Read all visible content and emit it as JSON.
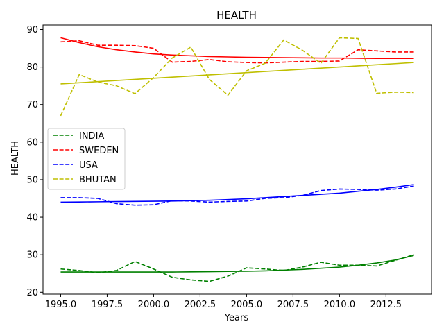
{
  "chart_data": {
    "type": "line",
    "title": "HEALTH",
    "xlabel": "Years",
    "ylabel": "HEALTH",
    "xlim": [
      1994.05,
      2014.95
    ],
    "ylim": [
      19.5,
      91.2
    ],
    "x_ticks": [
      1995.0,
      1997.5,
      2000.0,
      2002.5,
      2005.0,
      2007.5,
      2010.0,
      2012.5
    ],
    "x_tick_labels": [
      "1995.0",
      "1997.5",
      "2000.0",
      "2002.5",
      "2005.0",
      "2007.5",
      "2010.0",
      "2012.5"
    ],
    "y_ticks": [
      20,
      30,
      40,
      50,
      60,
      70,
      80,
      90
    ],
    "y_tick_labels": [
      "20",
      "30",
      "40",
      "50",
      "60",
      "70",
      "80",
      "90"
    ],
    "grid": false,
    "legend_position": "center-left",
    "x": [
      1995,
      1996,
      1997,
      1998,
      1999,
      2000,
      2001,
      2002,
      2003,
      2004,
      2005,
      2006,
      2007,
      2008,
      2009,
      2010,
      2011,
      2012,
      2013,
      2014
    ],
    "series": [
      {
        "name": "INDIA",
        "color": "#008000",
        "values": [
          26.2,
          25.8,
          25.2,
          25.8,
          28.2,
          26.2,
          24.0,
          23.3,
          22.9,
          24.3,
          26.5,
          26.2,
          25.8,
          26.7,
          28.0,
          27.2,
          27.2,
          27.0,
          28.5,
          30.0
        ],
        "trend": [
          25.4,
          25.4,
          25.4,
          25.4,
          25.4,
          25.4,
          25.4,
          25.45,
          25.5,
          25.55,
          25.6,
          25.7,
          25.9,
          26.1,
          26.4,
          26.7,
          27.2,
          27.8,
          28.6,
          29.8
        ]
      },
      {
        "name": "SWEDEN",
        "color": "#ff0000",
        "values": [
          86.7,
          87.0,
          85.8,
          85.8,
          85.7,
          85.0,
          81.3,
          81.5,
          82.0,
          81.4,
          81.2,
          81.1,
          81.3,
          81.5,
          81.5,
          81.6,
          84.6,
          84.3,
          84.0,
          84.0
        ],
        "trend": [
          87.8,
          86.5,
          85.4,
          84.6,
          84.0,
          83.5,
          83.2,
          83.0,
          82.8,
          82.7,
          82.6,
          82.55,
          82.5,
          82.45,
          82.4,
          82.4,
          82.35,
          82.3,
          82.3,
          82.3
        ]
      },
      {
        "name": "USA",
        "color": "#0000ff",
        "values": [
          45.2,
          45.2,
          45.0,
          43.6,
          43.2,
          43.3,
          44.4,
          44.3,
          44.0,
          44.2,
          44.3,
          45.0,
          45.2,
          45.8,
          47.1,
          47.5,
          47.4,
          47.2,
          47.5,
          48.3
        ],
        "trend": [
          44.0,
          44.05,
          44.1,
          44.15,
          44.2,
          44.25,
          44.3,
          44.4,
          44.5,
          44.7,
          44.9,
          45.2,
          45.5,
          45.8,
          46.1,
          46.4,
          46.9,
          47.4,
          48.0,
          48.7
        ]
      },
      {
        "name": "BHUTAN",
        "color": "#bfbf00",
        "values": [
          67.0,
          78.0,
          76.0,
          75.0,
          72.9,
          77.2,
          82.4,
          85.3,
          76.7,
          72.5,
          79.0,
          81.0,
          87.2,
          84.5,
          81.0,
          87.8,
          87.6,
          73.0,
          73.3,
          73.2
        ],
        "trend": [
          75.5,
          75.8,
          76.1,
          76.4,
          76.7,
          77.0,
          77.3,
          77.6,
          77.9,
          78.2,
          78.5,
          78.8,
          79.1,
          79.4,
          79.7,
          80.0,
          80.3,
          80.6,
          80.9,
          81.2
        ]
      }
    ]
  }
}
